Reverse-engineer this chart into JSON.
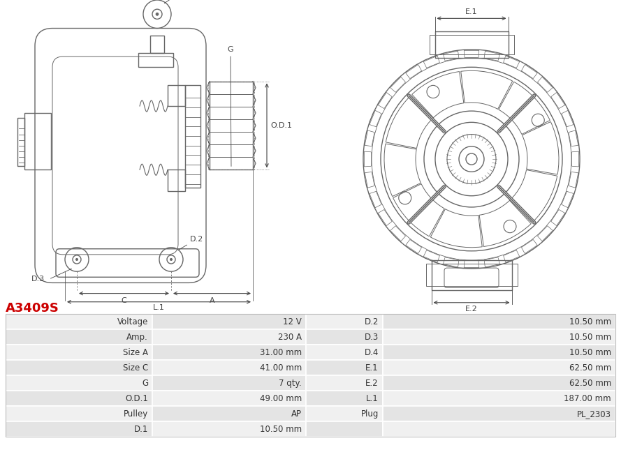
{
  "title": "A3409S",
  "title_color": "#cc0000",
  "table_rows": [
    [
      "Voltage",
      "12 V",
      "D.2",
      "10.50 mm"
    ],
    [
      "Amp.",
      "230 A",
      "D.3",
      "10.50 mm"
    ],
    [
      "Size A",
      "31.00 mm",
      "D.4",
      "10.50 mm"
    ],
    [
      "Size C",
      "41.00 mm",
      "E.1",
      "62.50 mm"
    ],
    [
      "G",
      "7 qty.",
      "E.2",
      "62.50 mm"
    ],
    [
      "O.D.1",
      "49.00 mm",
      "L.1",
      "187.00 mm"
    ],
    [
      "Pulley",
      "AP",
      "Plug",
      "PL_2303"
    ],
    [
      "D.1",
      "10.50 mm",
      "",
      ""
    ]
  ],
  "bg_color": "#ffffff",
  "table_row_bg_odd": "#f0f0f0",
  "table_row_bg_even": "#e4e4e4",
  "dim_color": "#444444",
  "edge_color": "#666666",
  "diagram_bg": "#ffffff"
}
